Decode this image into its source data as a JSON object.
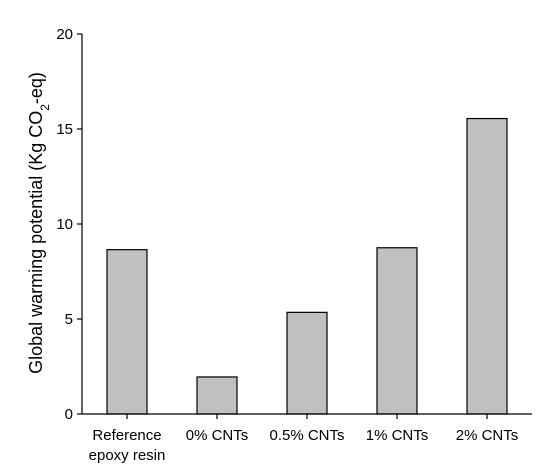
{
  "chart_data": {
    "type": "bar",
    "categories": [
      [
        "Reference",
        "epoxy resin"
      ],
      [
        "0% CNTs"
      ],
      [
        "0.5% CNTs"
      ],
      [
        "1% CNTs"
      ],
      [
        "2% CNTs"
      ]
    ],
    "values": [
      8.65,
      1.95,
      5.35,
      8.75,
      15.55
    ],
    "ylabel": {
      "prefix": "Global warming potential (Kg CO",
      "subscript": "2",
      "suffix": "-eq)"
    },
    "xlabel": "",
    "title": "",
    "ylim": [
      0,
      20
    ],
    "yticks": [
      0,
      5,
      10,
      15,
      20
    ],
    "grid": false,
    "legend": "none",
    "bar_color": "#c0c0c0",
    "edge_color": "#000000"
  }
}
